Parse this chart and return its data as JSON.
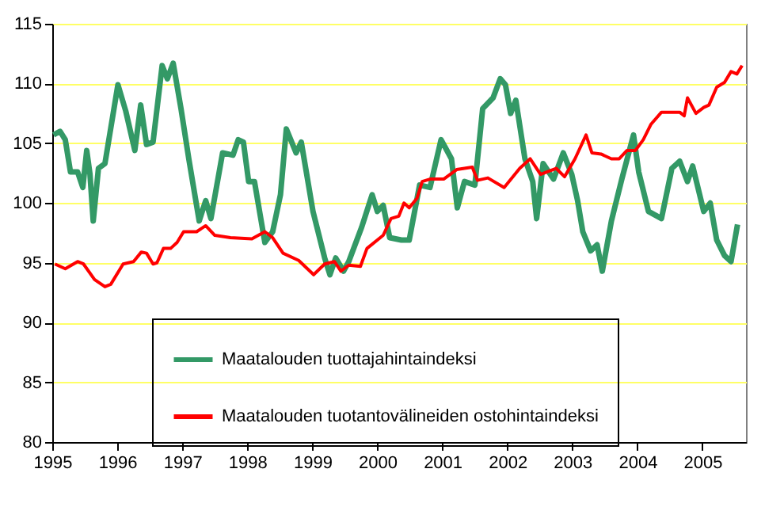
{
  "chart_data": {
    "type": "line",
    "xlim": [
      1995,
      2005.67
    ],
    "xticks": [
      1995,
      1996,
      1997,
      1998,
      1999,
      2000,
      2001,
      2002,
      2003,
      2004,
      2005
    ],
    "ylim": [
      80,
      115
    ],
    "yticks": [
      80,
      85,
      90,
      95,
      100,
      105,
      110,
      115
    ],
    "grid": "y",
    "legend": "bottom",
    "marker": "none",
    "line_style": "solid",
    "series": [
      {
        "name": "Maatalouden tuottajahintaindeksi",
        "color": "#339966",
        "x": [
          1995.02,
          1995.12,
          1995.2,
          1995.28,
          1995.39,
          1995.47,
          1995.53,
          1995.58,
          1995.63,
          1995.71,
          1995.81,
          1996.01,
          1996.13,
          1996.27,
          1996.36,
          1996.45,
          1996.55,
          1996.69,
          1996.77,
          1996.86,
          1996.98,
          1997.1,
          1997.26,
          1997.36,
          1997.44,
          1997.62,
          1997.78,
          1997.86,
          1997.94,
          1998.02,
          1998.11,
          1998.27,
          1998.39,
          1998.51,
          1998.6,
          1998.75,
          1998.83,
          1999.01,
          1999.19,
          1999.27,
          1999.36,
          1999.48,
          1999.56,
          1999.76,
          1999.92,
          2000.0,
          2000.09,
          2000.19,
          2000.37,
          2000.49,
          2000.65,
          2000.81,
          2000.98,
          2001.14,
          2001.23,
          2001.34,
          2001.5,
          2001.62,
          2001.78,
          2001.89,
          2001.97,
          2002.05,
          2002.13,
          2002.27,
          2002.39,
          2002.45,
          2002.55,
          2002.71,
          2002.86,
          2002.99,
          2003.08,
          2003.16,
          2003.28,
          2003.38,
          2003.46,
          2003.6,
          2003.76,
          2003.94,
          2004.02,
          2004.17,
          2004.37,
          2004.53,
          2004.65,
          2004.77,
          2004.85,
          2005.02,
          2005.12,
          2005.22,
          2005.34,
          2005.44,
          2005.54
        ],
        "values": [
          105.7,
          106.0,
          105.3,
          102.6,
          102.6,
          101.3,
          104.4,
          102.4,
          98.5,
          102.9,
          103.3,
          109.9,
          107.7,
          104.4,
          108.2,
          104.9,
          105.1,
          111.5,
          110.4,
          111.7,
          107.9,
          103.7,
          98.5,
          100.2,
          98.7,
          104.2,
          104.0,
          105.3,
          105.1,
          101.8,
          101.8,
          96.7,
          97.6,
          100.7,
          106.2,
          104.2,
          105.1,
          99.3,
          95.4,
          94.0,
          95.4,
          94.3,
          95.1,
          98.0,
          100.7,
          99.3,
          99.8,
          97.1,
          96.9,
          96.9,
          101.5,
          101.3,
          105.3,
          103.7,
          99.6,
          101.8,
          101.5,
          107.9,
          108.8,
          110.4,
          109.9,
          107.5,
          108.6,
          103.7,
          101.8,
          98.7,
          103.3,
          102.0,
          104.2,
          102.4,
          100.2,
          97.6,
          96.0,
          96.5,
          94.3,
          98.5,
          102.0,
          105.7,
          102.6,
          99.3,
          98.7,
          102.9,
          103.5,
          101.8,
          103.1,
          99.3,
          100.0,
          96.9,
          95.6,
          95.1,
          98.2
        ]
      },
      {
        "name": "Maatalouden tuotantovälineiden ostohintaindeksi",
        "color": "#ff0000",
        "x": [
          1995.04,
          1995.2,
          1995.39,
          1995.48,
          1995.65,
          1995.81,
          1995.9,
          1996.09,
          1996.25,
          1996.37,
          1996.45,
          1996.55,
          1996.61,
          1996.71,
          1996.82,
          1996.92,
          1997.02,
          1997.22,
          1997.36,
          1997.5,
          1997.74,
          1998.07,
          1998.27,
          1998.39,
          1998.55,
          1998.79,
          1999.02,
          1999.19,
          1999.34,
          1999.44,
          1999.56,
          1999.74,
          1999.84,
          2000.09,
          2000.21,
          2000.33,
          2000.41,
          2000.49,
          2000.61,
          2000.69,
          2000.81,
          2001.02,
          2001.22,
          2001.46,
          2001.54,
          2001.7,
          2001.95,
          2002.19,
          2002.35,
          2002.51,
          2002.75,
          2002.88,
          2003.04,
          2003.21,
          2003.3,
          2003.44,
          2003.6,
          2003.72,
          2003.84,
          2003.97,
          2004.09,
          2004.21,
          2004.37,
          2004.65,
          2004.72,
          2004.77,
          2004.9,
          2005.02,
          2005.1,
          2005.22,
          2005.34,
          2005.44,
          2005.53,
          2005.61
        ],
        "values": [
          94.9,
          94.5,
          95.1,
          94.9,
          93.6,
          93.0,
          93.2,
          94.9,
          95.1,
          95.9,
          95.8,
          94.9,
          95.0,
          96.2,
          96.2,
          96.7,
          97.6,
          97.6,
          98.1,
          97.3,
          97.1,
          97.0,
          97.6,
          97.1,
          95.8,
          95.2,
          94.0,
          94.9,
          95.1,
          94.3,
          94.8,
          94.7,
          96.2,
          97.3,
          98.7,
          98.9,
          100.0,
          99.6,
          100.4,
          101.8,
          102.0,
          102.0,
          102.8,
          103.0,
          101.9,
          102.1,
          101.3,
          102.9,
          103.7,
          102.4,
          102.9,
          102.2,
          103.7,
          105.7,
          104.2,
          104.1,
          103.7,
          103.7,
          104.4,
          104.4,
          105.3,
          106.6,
          107.6,
          107.6,
          107.3,
          108.8,
          107.5,
          108.0,
          108.2,
          109.7,
          110.1,
          111.0,
          110.8,
          111.5
        ]
      }
    ]
  }
}
